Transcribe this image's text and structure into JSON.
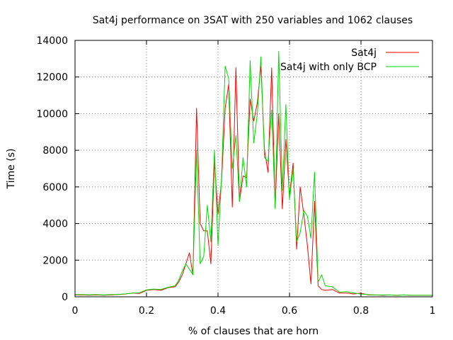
{
  "chart_data": {
    "type": "line",
    "title": "Sat4j performance on 3SAT with 250 variables and 1062 clauses",
    "xlabel": "% of clauses that are horn",
    "ylabel": "Time (s)",
    "xlim": [
      0,
      1
    ],
    "ylim": [
      0,
      14000
    ],
    "xticks": [
      0,
      0.2,
      0.4,
      0.6,
      0.8,
      1
    ],
    "xtick_labels": [
      "0",
      "0.2",
      "0.4",
      "0.6",
      "0.8",
      "1"
    ],
    "yticks": [
      0,
      2000,
      4000,
      6000,
      8000,
      10000,
      12000,
      14000
    ],
    "ytick_labels": [
      "0",
      "2000",
      "4000",
      "6000",
      "8000",
      "10000",
      "12000",
      "14000"
    ],
    "grid": true,
    "legend_position": "top-right",
    "series": [
      {
        "name": "Sat4j",
        "color": "#ff0000",
        "x": [
          0,
          0.02,
          0.04,
          0.06,
          0.08,
          0.1,
          0.12,
          0.14,
          0.16,
          0.18,
          0.2,
          0.22,
          0.24,
          0.26,
          0.28,
          0.29,
          0.3,
          0.31,
          0.32,
          0.33,
          0.34,
          0.35,
          0.36,
          0.37,
          0.38,
          0.39,
          0.4,
          0.41,
          0.42,
          0.43,
          0.44,
          0.45,
          0.46,
          0.47,
          0.48,
          0.49,
          0.5,
          0.51,
          0.52,
          0.53,
          0.54,
          0.55,
          0.56,
          0.57,
          0.58,
          0.59,
          0.6,
          0.61,
          0.62,
          0.63,
          0.64,
          0.65,
          0.66,
          0.67,
          0.68,
          0.69,
          0.7,
          0.72,
          0.74,
          0.76,
          0.78,
          0.8,
          0.82,
          0.84,
          0.86,
          0.88,
          0.9,
          0.92,
          0.94,
          0.96,
          0.98,
          1
        ],
        "y": [
          100,
          100,
          90,
          100,
          90,
          100,
          120,
          150,
          200,
          180,
          350,
          400,
          350,
          500,
          550,
          800,
          1200,
          1800,
          2400,
          1200,
          10300,
          4000,
          3600,
          3600,
          1800,
          7400,
          4500,
          6300,
          10300,
          11600,
          4900,
          12500,
          5200,
          6600,
          6500,
          10800,
          9600,
          10600,
          12600,
          8000,
          6800,
          12500,
          4900,
          10000,
          4800,
          8600,
          5500,
          7300,
          2600,
          6000,
          4500,
          2800,
          700,
          5200,
          600,
          400,
          350,
          400,
          200,
          200,
          150,
          200,
          100,
          100,
          80,
          100,
          80,
          100,
          80,
          80,
          80,
          80
        ]
      },
      {
        "name": "Sat4j with only BCP",
        "color": "#00dd00",
        "x": [
          0,
          0.02,
          0.04,
          0.06,
          0.08,
          0.1,
          0.12,
          0.14,
          0.16,
          0.18,
          0.2,
          0.22,
          0.24,
          0.26,
          0.28,
          0.29,
          0.3,
          0.31,
          0.32,
          0.33,
          0.34,
          0.35,
          0.36,
          0.37,
          0.38,
          0.39,
          0.4,
          0.41,
          0.42,
          0.43,
          0.44,
          0.45,
          0.46,
          0.47,
          0.48,
          0.49,
          0.5,
          0.51,
          0.52,
          0.53,
          0.54,
          0.55,
          0.56,
          0.57,
          0.58,
          0.59,
          0.6,
          0.61,
          0.62,
          0.63,
          0.64,
          0.65,
          0.66,
          0.67,
          0.68,
          0.69,
          0.7,
          0.72,
          0.74,
          0.76,
          0.78,
          0.8,
          0.82,
          0.84,
          0.86,
          0.88,
          0.9,
          0.92,
          0.94,
          0.96,
          0.98,
          1
        ],
        "y": [
          120,
          120,
          110,
          120,
          100,
          120,
          130,
          160,
          200,
          220,
          380,
          420,
          400,
          520,
          600,
          900,
          1400,
          1800,
          1500,
          1200,
          8000,
          1800,
          2200,
          5000,
          3000,
          8000,
          2800,
          6500,
          12600,
          11900,
          7000,
          8800,
          5200,
          7600,
          6000,
          12900,
          8400,
          10000,
          13100,
          7600,
          7400,
          10200,
          4800,
          13400,
          5800,
          10500,
          5300,
          7000,
          3000,
          3500,
          4700,
          4400,
          3200,
          6800,
          800,
          1200,
          600,
          550,
          250,
          280,
          200,
          150,
          120,
          100,
          100,
          100,
          80,
          100,
          80,
          80,
          80,
          80
        ]
      }
    ]
  }
}
